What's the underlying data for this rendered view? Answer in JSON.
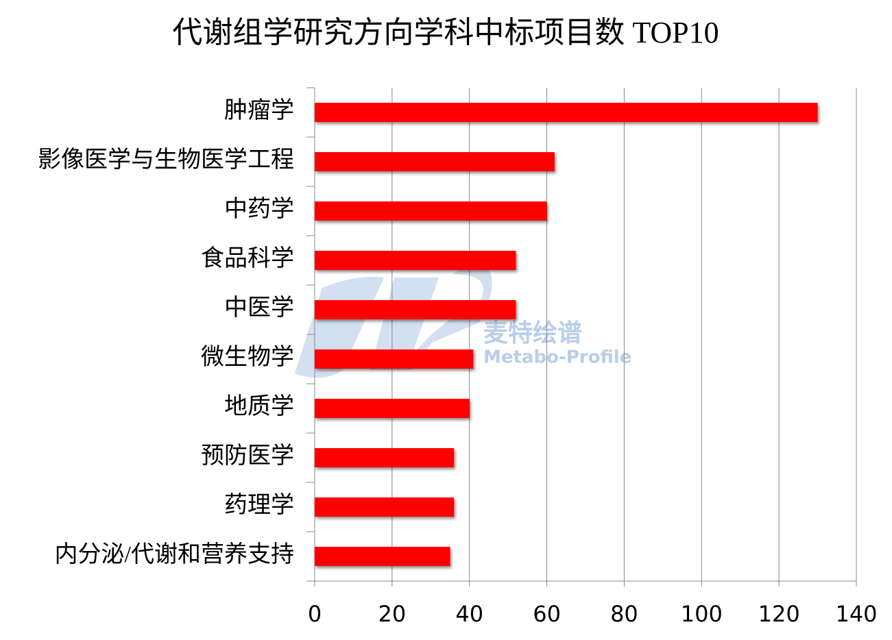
{
  "chart_data": {
    "type": "bar",
    "orientation": "horizontal",
    "title": "代谢组学研究方向学科中标项目数 TOP10",
    "categories": [
      "肿瘤学",
      "影像医学与生物医学工程",
      "中药学",
      "食品科学",
      "中医学",
      "微生物学",
      "地质学",
      "预防医学",
      "药理学",
      "内分泌/代谢和营养支持"
    ],
    "values": [
      130,
      62,
      60,
      52,
      52,
      41,
      40,
      36,
      36,
      35
    ],
    "color": "#ff0000",
    "xlim": [
      0,
      140
    ],
    "xticks": [
      0,
      20,
      40,
      60,
      80,
      100,
      120,
      140
    ],
    "grid": true,
    "watermark": [
      "麦特绘谱",
      "Metabo-Profile"
    ]
  }
}
